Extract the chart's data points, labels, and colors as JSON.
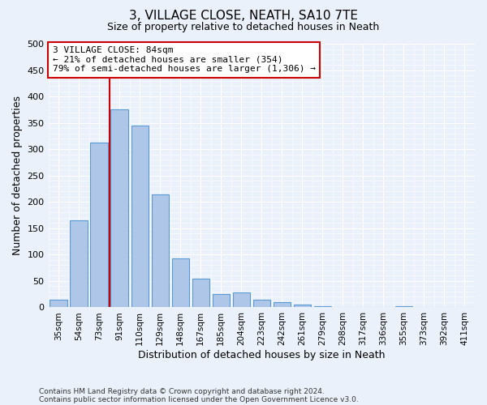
{
  "title": "3, VILLAGE CLOSE, NEATH, SA10 7TE",
  "subtitle": "Size of property relative to detached houses in Neath",
  "xlabel": "Distribution of detached houses by size in Neath",
  "ylabel": "Number of detached properties",
  "bar_labels": [
    "35sqm",
    "54sqm",
    "73sqm",
    "91sqm",
    "110sqm",
    "129sqm",
    "148sqm",
    "167sqm",
    "185sqm",
    "204sqm",
    "223sqm",
    "242sqm",
    "261sqm",
    "279sqm",
    "298sqm",
    "317sqm",
    "336sqm",
    "355sqm",
    "373sqm",
    "392sqm",
    "411sqm"
  ],
  "bar_values": [
    15,
    165,
    313,
    375,
    345,
    215,
    93,
    55,
    25,
    29,
    14,
    10,
    6,
    3,
    1,
    1,
    0,
    3,
    1,
    0,
    1
  ],
  "bar_color": "#aec6e8",
  "bar_edge_color": "#5b9bd5",
  "bg_color": "#eaf1fb",
  "grid_color": "#ffffff",
  "vline_color": "#cc0000",
  "vline_index": 3,
  "annotation_title": "3 VILLAGE CLOSE: 84sqm",
  "annotation_line1": "← 21% of detached houses are smaller (354)",
  "annotation_line2": "79% of semi-detached houses are larger (1,306) →",
  "annotation_box_color": "#cc0000",
  "ylim": [
    0,
    500
  ],
  "yticks": [
    0,
    50,
    100,
    150,
    200,
    250,
    300,
    350,
    400,
    450,
    500
  ],
  "footer1": "Contains HM Land Registry data © Crown copyright and database right 2024.",
  "footer2": "Contains public sector information licensed under the Open Government Licence v3.0."
}
